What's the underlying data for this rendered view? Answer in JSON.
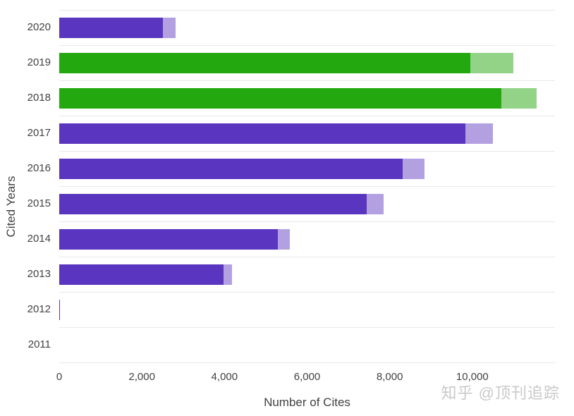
{
  "chart_data": {
    "type": "bar",
    "orientation": "horizontal",
    "stacked": true,
    "title": "",
    "xlabel": "Number of Cites",
    "ylabel": "Cited Years",
    "xlim": [
      0,
      12000
    ],
    "grid": true,
    "legend": false,
    "xticks": [
      {
        "value": 0,
        "label": "0"
      },
      {
        "value": 2000,
        "label": "2,000"
      },
      {
        "value": 4000,
        "label": "4,000"
      },
      {
        "value": 6000,
        "label": "6,000"
      },
      {
        "value": 8000,
        "label": "8,000"
      },
      {
        "value": 10000,
        "label": "10,000"
      }
    ],
    "categories": [
      "2020",
      "2019",
      "2018",
      "2017",
      "2016",
      "2015",
      "2014",
      "2013",
      "2012",
      "2011"
    ],
    "rows": [
      {
        "year": "2020",
        "main": 2510,
        "extension": 300,
        "total": 2810,
        "palette": "purple"
      },
      {
        "year": "2019",
        "main": 9960,
        "extension": 1030,
        "total": 10990,
        "palette": "green"
      },
      {
        "year": "2018",
        "main": 10710,
        "extension": 850,
        "total": 11560,
        "palette": "green"
      },
      {
        "year": "2017",
        "main": 9830,
        "extension": 660,
        "total": 10490,
        "palette": "purple"
      },
      {
        "year": "2016",
        "main": 8310,
        "extension": 530,
        "total": 8840,
        "palette": "purple"
      },
      {
        "year": "2015",
        "main": 7450,
        "extension": 400,
        "total": 7850,
        "palette": "purple"
      },
      {
        "year": "2014",
        "main": 5300,
        "extension": 290,
        "total": 5590,
        "palette": "purple"
      },
      {
        "year": "2013",
        "main": 3980,
        "extension": 210,
        "total": 4190,
        "palette": "purple"
      },
      {
        "year": "2012",
        "main": 15,
        "extension": 0,
        "total": 15,
        "palette": "purple"
      },
      {
        "year": "2011",
        "main": 0,
        "extension": 0,
        "total": 0,
        "palette": "purple"
      }
    ],
    "palettes": {
      "purple": {
        "dark": "#5a35bf",
        "light": "#b3a0e0"
      },
      "green": {
        "dark": "#23a80f",
        "light": "#93d388"
      }
    }
  },
  "colors": {
    "background": "#ffffff",
    "grid": "#e8e8ea",
    "text": "#424242",
    "watermark": "#c9c9c9"
  },
  "watermark": {
    "text": "知乎 @顶刊追踪"
  }
}
